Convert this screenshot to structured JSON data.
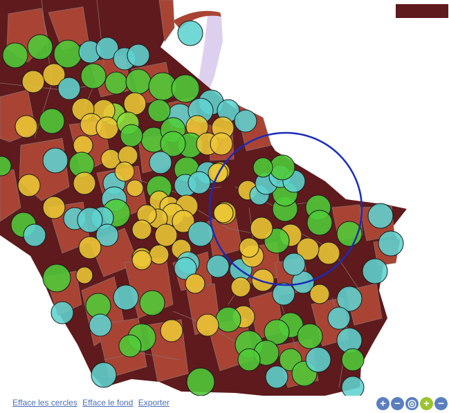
{
  "map": {
    "legend_color": "#5e1a1c",
    "background_color": "#ffffff",
    "river_color": "#ddd0ef",
    "district_dark": "#5e1a1c",
    "district_mid": "#a94434",
    "district_stroke": "#8a6e6e",
    "circle_stroke": "#1a1a1a",
    "selection_circle_color": "#1a2bb8",
    "circle_palette": {
      "cyan": "#5fd3cf",
      "green": "#4fcc38",
      "lime": "#8ee23c",
      "yellow": "#ecc734",
      "gold": "#dec23d"
    }
  },
  "footer": {
    "links": [
      {
        "label": "Efface les cercles",
        "color": "#4a6fb8"
      },
      {
        "label": "Efface le fond",
        "color": "#4a6fb8"
      },
      {
        "label": "Exporter",
        "color": "#4a6fb8"
      }
    ],
    "zoom_tools": [
      {
        "icon": "zoom-in-icon",
        "glyph": "+",
        "color": "#5a7fc0"
      },
      {
        "icon": "zoom-out-icon",
        "glyph": "−",
        "color": "#5a7fc0"
      },
      {
        "icon": "zoom-reset-icon",
        "glyph": "◎",
        "color": "#5a7fc0"
      },
      {
        "icon": "add-icon",
        "glyph": "+",
        "color": "#9ac52c"
      },
      {
        "icon": "remove-icon",
        "glyph": "−",
        "color": "#5a7fc0"
      }
    ]
  }
}
